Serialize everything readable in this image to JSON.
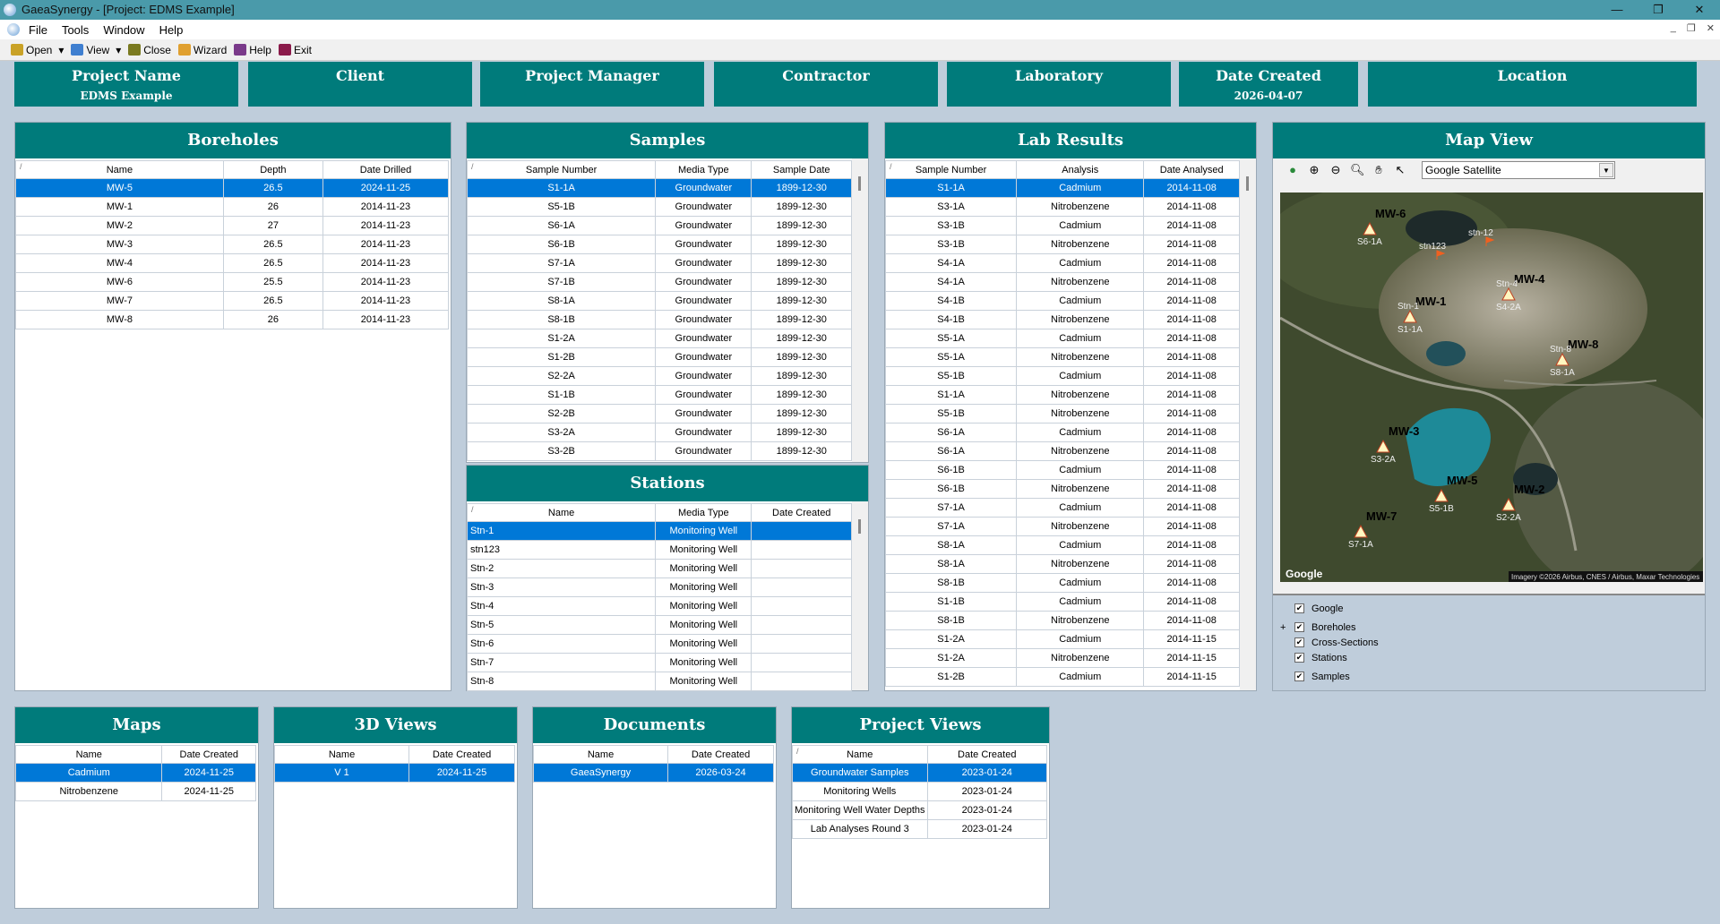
{
  "window": {
    "title": "GaeaSynergy - [Project: EDMS Example]",
    "controls": [
      "—",
      "❐",
      "✕"
    ]
  },
  "menu": [
    "File",
    "Tools",
    "Window",
    "Help"
  ],
  "toolbar": [
    {
      "label": "Open",
      "icon": "folder-open-icon",
      "color": "#c9a227"
    },
    {
      "label": "View",
      "icon": "eye-icon",
      "color": "#3f7fd0"
    },
    {
      "label": "Close",
      "icon": "folder-close-icon",
      "color": "#7a7a20"
    },
    {
      "label": "Wizard",
      "icon": "wand-icon",
      "color": "#e0a030"
    },
    {
      "label": "Help",
      "icon": "help-book-icon",
      "color": "#7a3a8a"
    },
    {
      "label": "Exit",
      "icon": "exit-door-icon",
      "color": "#8a1a4a"
    }
  ],
  "header": [
    {
      "title": "Project Name",
      "value": "EDMS Example"
    },
    {
      "title": "Client",
      "value": ""
    },
    {
      "title": "Project Manager",
      "value": ""
    },
    {
      "title": "Contractor",
      "value": ""
    },
    {
      "title": "Laboratory",
      "value": ""
    },
    {
      "title": "Date Created",
      "value": "2026-04-07"
    },
    {
      "title": "Location",
      "value": ""
    }
  ],
  "boreholes": {
    "title": "Boreholes",
    "columns": [
      "Name",
      "Depth",
      "Date Drilled"
    ],
    "rows": [
      [
        "MW-5",
        "26.5",
        "2024-11-25"
      ],
      [
        "MW-1",
        "26",
        "2014-11-23"
      ],
      [
        "MW-2",
        "27",
        "2014-11-23"
      ],
      [
        "MW-3",
        "26.5",
        "2014-11-23"
      ],
      [
        "MW-4",
        "26.5",
        "2014-11-23"
      ],
      [
        "MW-6",
        "25.5",
        "2014-11-23"
      ],
      [
        "MW-7",
        "26.5",
        "2014-11-23"
      ],
      [
        "MW-8",
        "26",
        "2014-11-23"
      ]
    ]
  },
  "samples": {
    "title": "Samples",
    "columns": [
      "Sample Number",
      "Media Type",
      "Sample Date"
    ],
    "rows": [
      [
        "S1-1A",
        "Groundwater",
        "1899-12-30"
      ],
      [
        "S5-1B",
        "Groundwater",
        "1899-12-30"
      ],
      [
        "S6-1A",
        "Groundwater",
        "1899-12-30"
      ],
      [
        "S6-1B",
        "Groundwater",
        "1899-12-30"
      ],
      [
        "S7-1A",
        "Groundwater",
        "1899-12-30"
      ],
      [
        "S7-1B",
        "Groundwater",
        "1899-12-30"
      ],
      [
        "S8-1A",
        "Groundwater",
        "1899-12-30"
      ],
      [
        "S8-1B",
        "Groundwater",
        "1899-12-30"
      ],
      [
        "S1-2A",
        "Groundwater",
        "1899-12-30"
      ],
      [
        "S1-2B",
        "Groundwater",
        "1899-12-30"
      ],
      [
        "S2-2A",
        "Groundwater",
        "1899-12-30"
      ],
      [
        "S1-1B",
        "Groundwater",
        "1899-12-30"
      ],
      [
        "S2-2B",
        "Groundwater",
        "1899-12-30"
      ],
      [
        "S3-2A",
        "Groundwater",
        "1899-12-30"
      ],
      [
        "S3-2B",
        "Groundwater",
        "1899-12-30"
      ]
    ]
  },
  "stations": {
    "title": "Stations",
    "columns": [
      "Name",
      "Media Type",
      "Date Created"
    ],
    "rows": [
      [
        "Stn-1",
        "Monitoring Well",
        ""
      ],
      [
        "stn123",
        "Monitoring Well",
        ""
      ],
      [
        "Stn-2",
        "Monitoring Well",
        ""
      ],
      [
        "Stn-3",
        "Monitoring Well",
        ""
      ],
      [
        "Stn-4",
        "Monitoring Well",
        ""
      ],
      [
        "Stn-5",
        "Monitoring Well",
        ""
      ],
      [
        "Stn-6",
        "Monitoring Well",
        ""
      ],
      [
        "Stn-7",
        "Monitoring Well",
        ""
      ],
      [
        "Stn-8",
        "Monitoring Well",
        ""
      ]
    ]
  },
  "lab_results": {
    "title": "Lab Results",
    "columns": [
      "Sample Number",
      "Analysis",
      "Date Analysed"
    ],
    "rows": [
      [
        "S1-1A",
        "Cadmium",
        "2014-11-08"
      ],
      [
        "S3-1A",
        "Nitrobenzene",
        "2014-11-08"
      ],
      [
        "S3-1B",
        "Cadmium",
        "2014-11-08"
      ],
      [
        "S3-1B",
        "Nitrobenzene",
        "2014-11-08"
      ],
      [
        "S4-1A",
        "Cadmium",
        "2014-11-08"
      ],
      [
        "S4-1A",
        "Nitrobenzene",
        "2014-11-08"
      ],
      [
        "S4-1B",
        "Cadmium",
        "2014-11-08"
      ],
      [
        "S4-1B",
        "Nitrobenzene",
        "2014-11-08"
      ],
      [
        "S5-1A",
        "Cadmium",
        "2014-11-08"
      ],
      [
        "S5-1A",
        "Nitrobenzene",
        "2014-11-08"
      ],
      [
        "S5-1B",
        "Cadmium",
        "2014-11-08"
      ],
      [
        "S1-1A",
        "Nitrobenzene",
        "2014-11-08"
      ],
      [
        "S5-1B",
        "Nitrobenzene",
        "2014-11-08"
      ],
      [
        "S6-1A",
        "Cadmium",
        "2014-11-08"
      ],
      [
        "S6-1A",
        "Nitrobenzene",
        "2014-11-08"
      ],
      [
        "S6-1B",
        "Cadmium",
        "2014-11-08"
      ],
      [
        "S6-1B",
        "Nitrobenzene",
        "2014-11-08"
      ],
      [
        "S7-1A",
        "Cadmium",
        "2014-11-08"
      ],
      [
        "S7-1A",
        "Nitrobenzene",
        "2014-11-08"
      ],
      [
        "S8-1A",
        "Cadmium",
        "2014-11-08"
      ],
      [
        "S8-1A",
        "Nitrobenzene",
        "2014-11-08"
      ],
      [
        "S8-1B",
        "Cadmium",
        "2014-11-08"
      ],
      [
        "S1-1B",
        "Cadmium",
        "2014-11-08"
      ],
      [
        "S8-1B",
        "Nitrobenzene",
        "2014-11-08"
      ],
      [
        "S1-2A",
        "Cadmium",
        "2014-11-15"
      ],
      [
        "S1-2A",
        "Nitrobenzene",
        "2014-11-15"
      ],
      [
        "S1-2B",
        "Cadmium",
        "2014-11-15"
      ]
    ]
  },
  "map": {
    "title": "Map View",
    "basemap": "Google Satellite",
    "logo": "Google",
    "attribution": "Imagery ©2026 Airbus, CNES / Airbus, Maxar Technologies",
    "wells": [
      {
        "label": "MW-6",
        "sample": "S6-1A"
      },
      {
        "label": "MW-1",
        "sample": "S1-1A",
        "station": "Stn-1"
      },
      {
        "label": "MW-4",
        "sample": "S4-2A",
        "station": "Stn-4"
      },
      {
        "label": "MW-8",
        "sample": "S8-1A",
        "station": "Stn-8"
      },
      {
        "label": "MW-3",
        "sample": "S3-2A"
      },
      {
        "label": "MW-5",
        "sample": "S5-1B"
      },
      {
        "label": "MW-2",
        "sample": "S2-2A"
      },
      {
        "label": "MW-7",
        "sample": "S7-1A"
      }
    ],
    "flags": [
      "stn123",
      "stn-12"
    ],
    "layers": [
      {
        "name": "Google",
        "checked": true
      },
      {
        "name": "Boreholes",
        "checked": true,
        "expandable": true
      },
      {
        "name": "Cross-Sections",
        "checked": true
      },
      {
        "name": "Stations",
        "checked": true
      },
      {
        "name": "Samples",
        "checked": true
      }
    ]
  },
  "maps": {
    "title": "Maps",
    "columns": [
      "Name",
      "Date Created"
    ],
    "rows": [
      [
        "Cadmium",
        "2024-11-25"
      ],
      [
        "Nitrobenzene",
        "2024-11-25"
      ]
    ]
  },
  "views3d": {
    "title": "3D Views",
    "columns": [
      "Name",
      "Date Created"
    ],
    "rows": [
      [
        "V 1",
        "2024-11-25"
      ]
    ]
  },
  "documents": {
    "title": "Documents",
    "columns": [
      "Name",
      "Date Created"
    ],
    "rows": [
      [
        "GaeaSynergy",
        "2026-03-24"
      ]
    ]
  },
  "project_views": {
    "title": "Project Views",
    "columns": [
      "Name",
      "Date Created"
    ],
    "rows": [
      [
        "Groundwater Samples",
        "2023-01-24"
      ],
      [
        "Monitoring Wells",
        "2023-01-24"
      ],
      [
        "Monitoring Well Water Depths",
        "2023-01-24"
      ],
      [
        "Lab Analyses Round 3",
        "2023-01-24"
      ]
    ]
  }
}
